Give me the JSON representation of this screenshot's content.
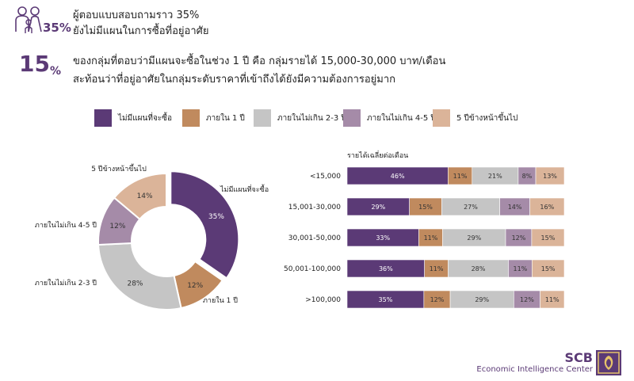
{
  "header": {
    "badge_percent": "35%",
    "line1": "ผู้ตอบแบบสอบถามราว 35%",
    "line2": "ยังไม่มีแผนในการซื้อที่อยู่อาศัย",
    "big_value": "15",
    "big_unit": "%",
    "detail1": "ของกลุ่มที่ตอบว่ามีแผนจะซื้อในช่วง 1 ปี คือ กลุ่มรายได้ 15,000-30,000 บาท/เดือน",
    "detail2": "สะท้อนว่าที่อยู่อาศัยในกลุ่มระดับราคาที่เข้าถึงได้ยังมีความต้องการอยู่มาก"
  },
  "brand": {
    "name": "SCB",
    "subtitle": "Economic Intelligence Center"
  },
  "icons": {
    "family": "family-icon",
    "logo": "scb-logo-icon"
  },
  "chart_data": [
    {
      "type": "pie",
      "style": "donut",
      "categories": [
        "ไม่มีแผนที่จะซื้อ",
        "ภายใน 1 ปี",
        "ภายในไม่เกิน 2-3 ปี",
        "ภายในไม่เกิน 4-5 ปี",
        "5 ปีข้างหน้าขึ้นไป"
      ],
      "values": [
        35,
        12,
        28,
        12,
        14
      ],
      "labels": [
        "35%",
        "12%",
        "28%",
        "12%",
        "14%"
      ],
      "colors": [
        "#5b3a76",
        "#c08a5e",
        "#c5c5c5",
        "#a58ba8",
        "#dbb499"
      ],
      "legend": "top"
    },
    {
      "type": "bar",
      "orientation": "horizontal",
      "stacked": true,
      "title": "รายได้เฉลี่ยต่อเดือน",
      "categories": [
        "<15,000",
        "15,001-30,000",
        "30,001-50,000",
        "50,001-100,000",
        ">100,000"
      ],
      "series": [
        {
          "name": "ไม่มีแผนที่จะซื้อ",
          "values": [
            46,
            29,
            33,
            36,
            35
          ],
          "labels": [
            "46%",
            "29%",
            "33%",
            "36%",
            "35%"
          ],
          "color": "#5b3a76"
        },
        {
          "name": "ภายใน 1 ปี",
          "values": [
            11,
            15,
            11,
            11,
            12
          ],
          "labels": [
            "11%",
            "15%",
            "11%",
            "11%",
            "12%"
          ],
          "color": "#c08a5e"
        },
        {
          "name": "ภายในไม่เกิน 2-3 ปี",
          "values": [
            21,
            27,
            29,
            28,
            29
          ],
          "labels": [
            "21%",
            "27%",
            "29%",
            "28%",
            "29%"
          ],
          "color": "#c5c5c5"
        },
        {
          "name": "ภายในไม่เกิน 4-5 ปี",
          "values": [
            8,
            14,
            12,
            11,
            12
          ],
          "labels": [
            "8%",
            "14%",
            "12%",
            "11%",
            "12%"
          ],
          "color": "#a58ba8"
        },
        {
          "name": "5 ปีข้างหน้าขึ้นไป",
          "values": [
            13,
            16,
            15,
            15,
            11
          ],
          "labels": [
            "13%",
            "16%",
            "15%",
            "15%",
            "11%"
          ],
          "color": "#dbb499"
        }
      ],
      "xlim": [
        0,
        100
      ]
    }
  ]
}
